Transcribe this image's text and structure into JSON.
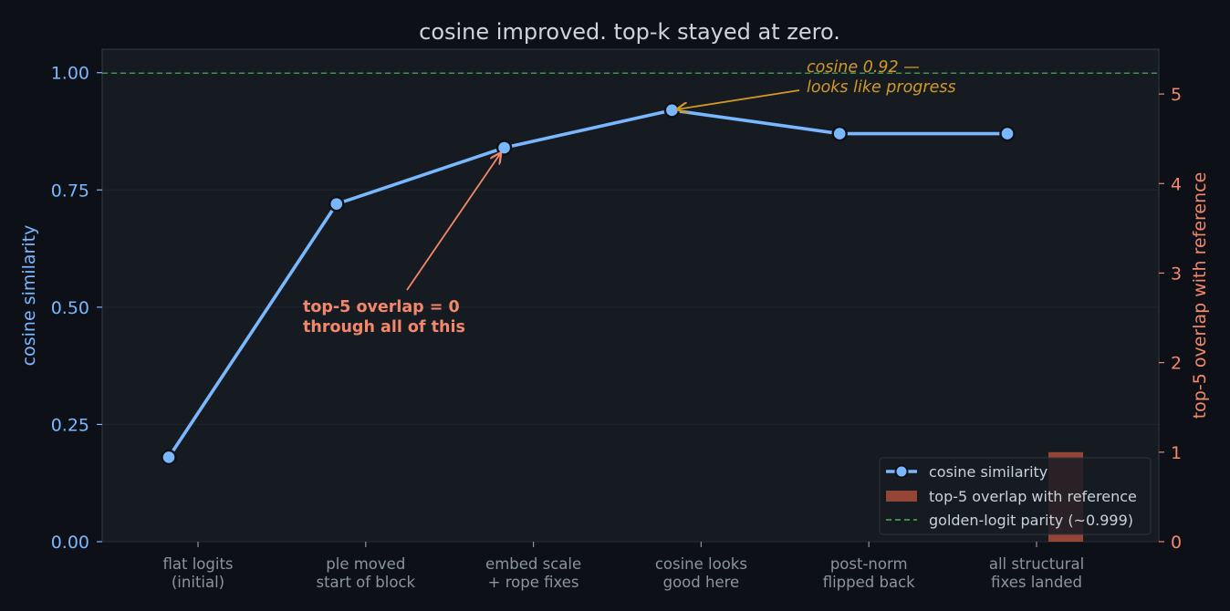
{
  "colors": {
    "background": "#0d1117",
    "plot_background": "#161b22",
    "cosine": "#79b8ff",
    "overlap": "#f2876b",
    "overlap_bar": "#b4503c",
    "parity": "#56d364",
    "gold": "#d29922"
  },
  "chart_data": {
    "type": "line",
    "title": "cosine improved. top-k stayed at zero.",
    "categories": [
      [
        "flat logits",
        "(initial)"
      ],
      [
        "ple moved",
        "start of block"
      ],
      [
        "embed scale",
        "+ rope fixes"
      ],
      [
        "cosine looks",
        "good here"
      ],
      [
        "post-norm",
        "flipped back"
      ],
      [
        "all structural",
        "fixes landed"
      ]
    ],
    "series": [
      {
        "name": "cosine similarity",
        "type": "line",
        "axis": "left",
        "values": [
          0.18,
          0.72,
          0.84,
          0.92,
          0.87,
          0.87
        ]
      },
      {
        "name": "top-5 overlap with reference",
        "type": "bar",
        "axis": "right",
        "values": [
          0,
          0,
          0,
          0,
          0,
          1
        ]
      }
    ],
    "reference_line": {
      "name": "golden-logit parity (~0.999)",
      "value": 0.999,
      "axis": "left"
    },
    "ylabel": "cosine similarity",
    "ylim": [
      0,
      1.05
    ],
    "yticks": [
      "0.00",
      "0.25",
      "0.50",
      "0.75",
      "1.00"
    ],
    "y2label": "top-5 overlap with reference",
    "y2lim": [
      0,
      5.5
    ],
    "y2ticks": [
      "0",
      "1",
      "2",
      "3",
      "4",
      "5"
    ],
    "annotations": [
      {
        "lines": [
          "top-5 overlap = 0",
          "through all of this"
        ],
        "target_index": 2,
        "style": "red-bold"
      },
      {
        "lines": [
          "cosine 0.92 —",
          "looks like progress"
        ],
        "target_index": 3,
        "style": "gold-italic"
      }
    ],
    "grid": true,
    "legend_position": "bottom-right"
  }
}
